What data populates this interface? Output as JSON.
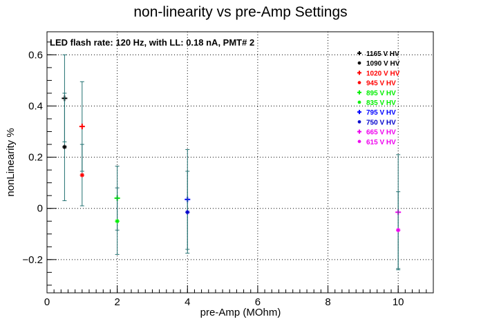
{
  "chart_data": {
    "type": "scatter",
    "title": "non-linearity vs pre-Amp Settings",
    "annotation": "LED flash rate: 120 Hz, with LL: 0.18 nA, PMT# 2",
    "xlabel": "pre-Amp (MOhm)",
    "ylabel": "nonLinearity %",
    "xlim": [
      0,
      11
    ],
    "ylim": [
      -0.33,
      0.69
    ],
    "grid": true,
    "legend_position": "top-right",
    "x_ticks": [
      {
        "v": 0,
        "label": "0"
      },
      {
        "v": 2,
        "label": "2"
      },
      {
        "v": 4,
        "label": "4"
      },
      {
        "v": 6,
        "label": "6"
      },
      {
        "v": 8,
        "label": "8"
      },
      {
        "v": 10,
        "label": "10"
      }
    ],
    "y_ticks": [
      {
        "v": -0.2,
        "label": "−0.2"
      },
      {
        "v": 0,
        "label": "0"
      },
      {
        "v": 0.2,
        "label": "0.2"
      },
      {
        "v": 0.4,
        "label": "0.4"
      },
      {
        "v": 0.6,
        "label": "0.6"
      }
    ],
    "error_bar_color": "#1f6f6f",
    "series": [
      {
        "name": "1165 V HV",
        "color": "#000000",
        "marker": "plus",
        "points": [
          {
            "x": 0.5,
            "y": 0.43,
            "err": 0.17
          }
        ]
      },
      {
        "name": "1090 V HV",
        "color": "#000000",
        "marker": "star",
        "points": [
          {
            "x": 0.5,
            "y": 0.24,
            "err": 0.21
          }
        ]
      },
      {
        "name": "1020 V HV",
        "color": "#ff0000",
        "marker": "plus",
        "points": [
          {
            "x": 1,
            "y": 0.32,
            "err": 0.175
          }
        ]
      },
      {
        "name": "945 V HV",
        "color": "#ff0000",
        "marker": "star",
        "points": [
          {
            "x": 1,
            "y": 0.13,
            "err": 0.12
          }
        ]
      },
      {
        "name": "895 V HV",
        "color": "#00ee00",
        "marker": "plus",
        "points": [
          {
            "x": 2,
            "y": 0.04,
            "err": 0.125
          }
        ]
      },
      {
        "name": "835 V HV",
        "color": "#00ee00",
        "marker": "star",
        "points": [
          {
            "x": 2,
            "y": -0.05,
            "err": 0.13
          }
        ]
      },
      {
        "name": "795 V HV",
        "color": "#0000ff",
        "marker": "plus",
        "points": [
          {
            "x": 4,
            "y": 0.035,
            "err": 0.195
          }
        ]
      },
      {
        "name": "750 V HV",
        "color": "#0000cc",
        "marker": "star",
        "points": [
          {
            "x": 4,
            "y": -0.015,
            "err": 0.16
          }
        ]
      },
      {
        "name": "665 V HV",
        "color": "#ee00ee",
        "marker": "plus",
        "points": [
          {
            "x": 10,
            "y": -0.015,
            "err": 0.225
          }
        ]
      },
      {
        "name": "615 V HV",
        "color": "#ee00ee",
        "marker": "star",
        "points": [
          {
            "x": 10,
            "y": -0.085,
            "err": 0.15
          }
        ]
      }
    ]
  }
}
